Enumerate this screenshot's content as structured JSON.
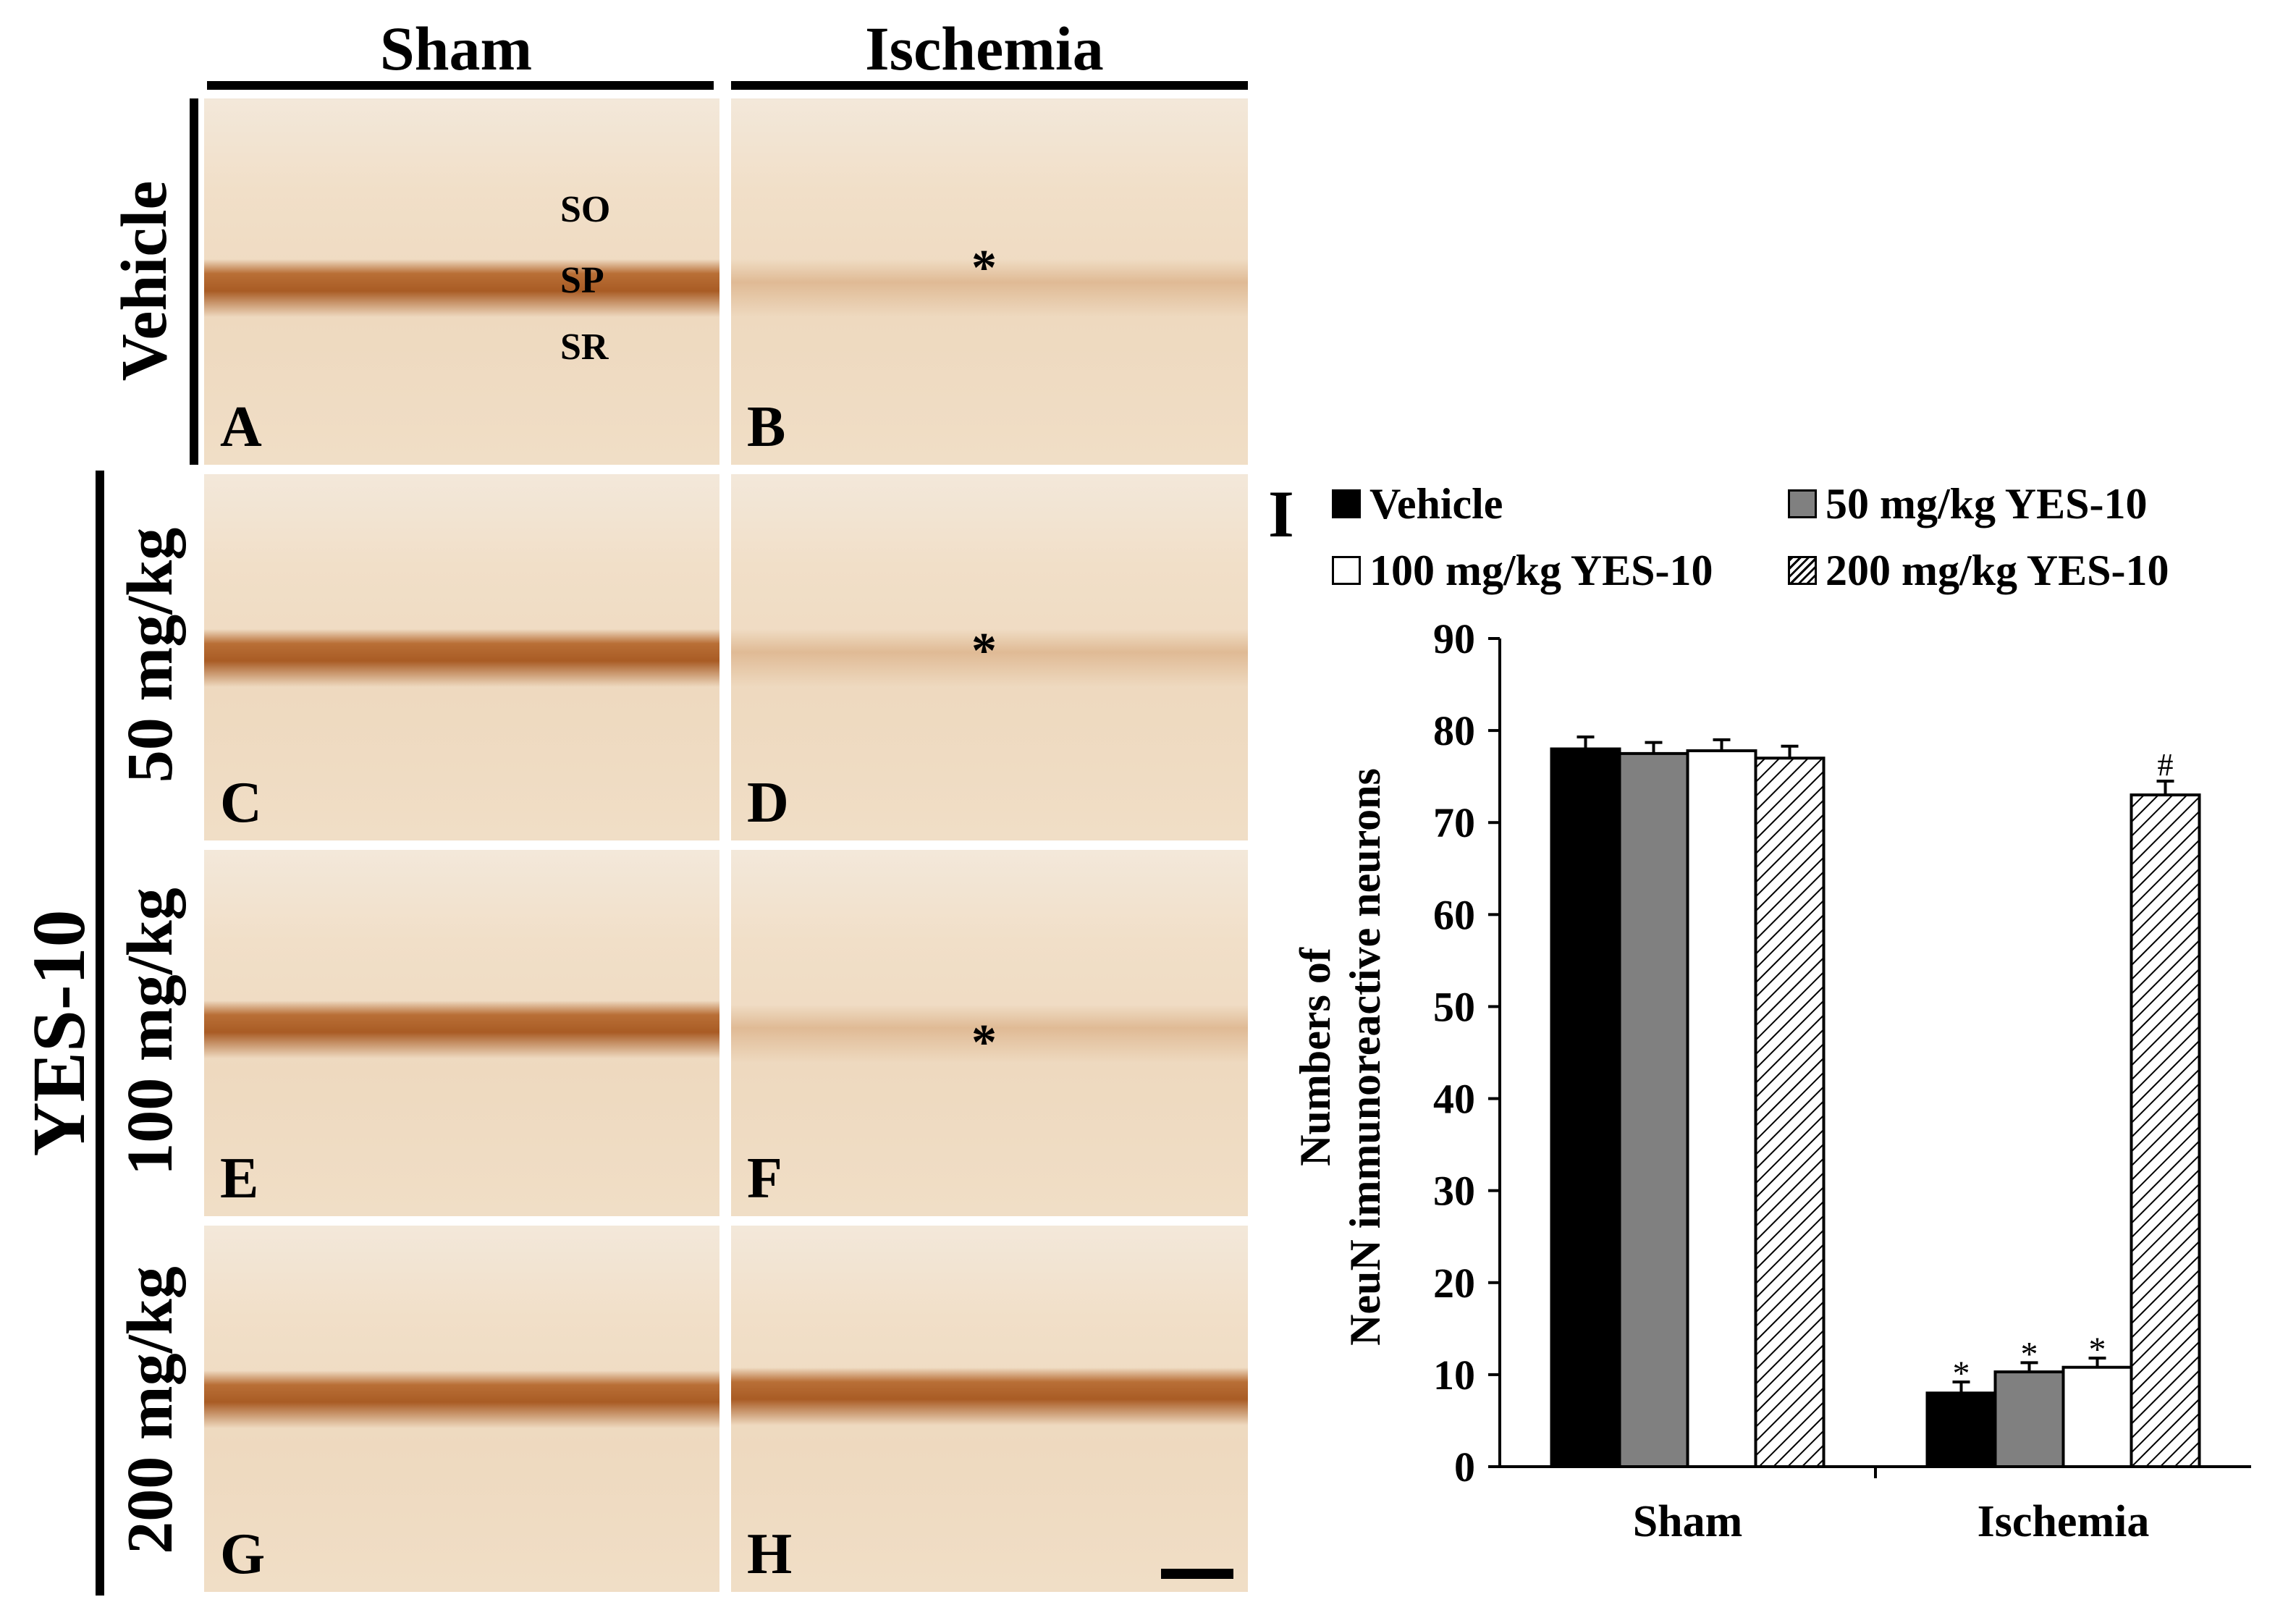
{
  "figure": {
    "columns": [
      "Sham",
      "Ischemia"
    ],
    "rows": {
      "vehicle": "Vehicle",
      "yes_group": "YES-10",
      "dose_50": "50 mg/kg",
      "dose_100": "100 mg/kg",
      "dose_200": "200 mg/kg"
    },
    "panels": {
      "A": "A",
      "B": "B",
      "C": "C",
      "D": "D",
      "E": "E",
      "F": "F",
      "G": "G",
      "H": "H"
    },
    "layers": {
      "so": "SO",
      "sp": "SP",
      "sr": "SR"
    },
    "asterisk": "*",
    "stain_color": "#b4641e",
    "bg_color": "#f1e0c8"
  },
  "chart_panel_letter": "I",
  "chart_data": {
    "type": "bar",
    "categories": [
      "Sham",
      "Ischemia"
    ],
    "ylabel_line1": "Numbers of",
    "ylabel_line2": "NeuN immunoreactive neurons",
    "ylim": [
      0,
      90
    ],
    "yticks": [
      "0",
      "10",
      "20",
      "30",
      "40",
      "50",
      "60",
      "70",
      "80",
      "90"
    ],
    "series": [
      {
        "name": "Vehicle",
        "fill": "#000000",
        "pattern": "solid",
        "values": [
          78,
          8
        ],
        "errors": [
          1.3,
          1.2
        ],
        "marks": [
          "",
          "*"
        ]
      },
      {
        "name": "50 mg/kg YES-10",
        "fill": "#808080",
        "pattern": "solid",
        "values": [
          77.5,
          10.3
        ],
        "errors": [
          1.2,
          1.0
        ],
        "marks": [
          "",
          "*"
        ]
      },
      {
        "name": "100 mg/kg YES-10",
        "fill": "#ffffff",
        "pattern": "solid",
        "values": [
          77.8,
          10.8
        ],
        "errors": [
          1.2,
          1.0
        ],
        "marks": [
          "",
          "*"
        ]
      },
      {
        "name": "200 mg/kg YES-10",
        "fill": "#ffffff",
        "pattern": "hatch",
        "values": [
          77,
          73
        ],
        "errors": [
          1.3,
          1.5
        ],
        "marks": [
          "",
          "#"
        ]
      }
    ]
  }
}
